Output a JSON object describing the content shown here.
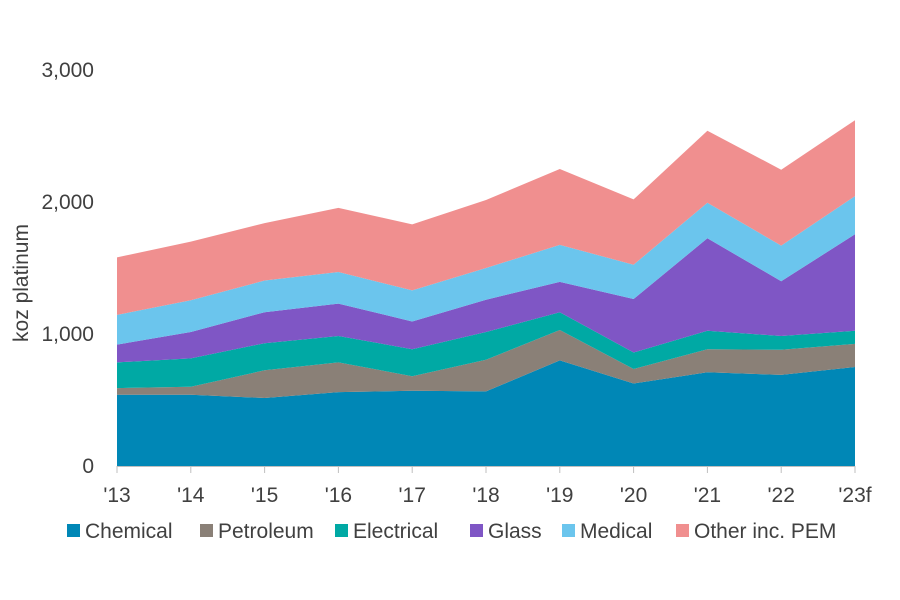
{
  "chart_data": {
    "type": "area",
    "stacked": true,
    "categories": [
      "'13",
      "'14",
      "'15",
      "'16",
      "'17",
      "'18",
      "'19",
      "'20",
      "'21",
      "'22",
      "'23f"
    ],
    "ylabel": "koz platinum",
    "ylim": [
      0,
      3000
    ],
    "yticks": [
      0,
      1000,
      2000,
      3000
    ],
    "ytick_labels": [
      "0",
      "1,000",
      "2,000",
      "3,000"
    ],
    "grid": false,
    "legend_position": "bottom",
    "series": [
      {
        "name": "Chemical",
        "color": "#0087b6",
        "values": [
          540,
          540,
          515,
          560,
          570,
          565,
          800,
          625,
          710,
          690,
          750
        ]
      },
      {
        "name": "Petroleum",
        "color": "#8a8077",
        "values": [
          50,
          60,
          210,
          225,
          110,
          240,
          230,
          110,
          175,
          190,
          175
        ]
      },
      {
        "name": "Electrical",
        "color": "#00a9a4",
        "values": [
          195,
          215,
          205,
          200,
          205,
          210,
          135,
          125,
          140,
          105,
          100
        ]
      },
      {
        "name": "Glass",
        "color": "#7f56c5",
        "values": [
          135,
          200,
          235,
          245,
          210,
          245,
          230,
          405,
          700,
          415,
          730
        ]
      },
      {
        "name": "Medical",
        "color": "#6bc5ed",
        "values": [
          225,
          240,
          240,
          240,
          235,
          240,
          280,
          260,
          270,
          270,
          290
        ]
      },
      {
        "name": "Other inc. PEM",
        "color": "#f08f8f",
        "values": [
          435,
          445,
          435,
          485,
          500,
          515,
          575,
          495,
          545,
          575,
          575
        ]
      }
    ]
  }
}
